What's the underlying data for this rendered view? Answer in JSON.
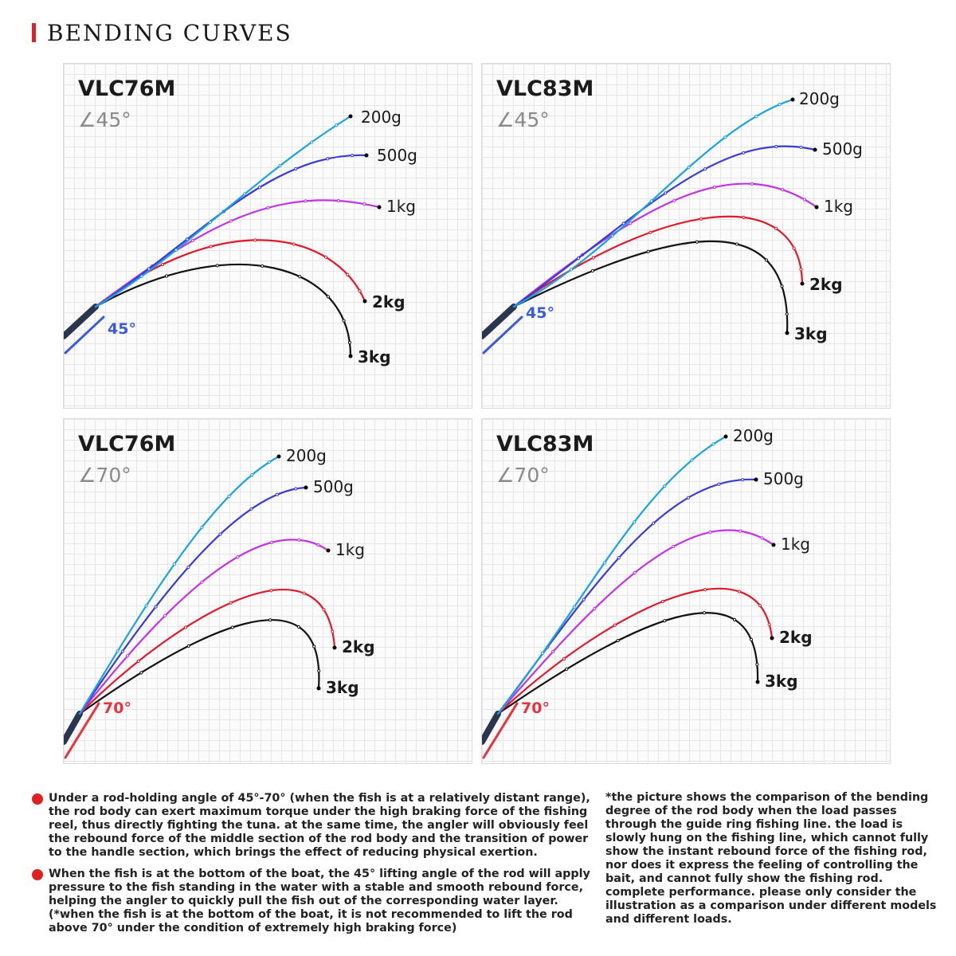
{
  "header": {
    "title": "BENDING CURVES"
  },
  "colors": {
    "accent": "#d9232a",
    "load_200g": "#1aa3e0",
    "load_500g": "#3a3ad6",
    "load_1kg": "#c233e8",
    "load_2kg": "#e0182a",
    "load_3kg": "#111111",
    "angle_45": "#3b5bdb",
    "angle_70": "#e8323c"
  },
  "panels": [
    {
      "model": "VLC76M",
      "angle": "∠45°",
      "angle_marker": "45°",
      "loads": [
        {
          "label": "200g"
        },
        {
          "label": "500g"
        },
        {
          "label": "1kg"
        },
        {
          "label": "2kg"
        },
        {
          "label": "3kg"
        }
      ]
    },
    {
      "model": "VLC83M",
      "angle": "∠45°",
      "angle_marker": "45°",
      "loads": [
        {
          "label": "200g"
        },
        {
          "label": "500g"
        },
        {
          "label": "1kg"
        },
        {
          "label": "2kg"
        },
        {
          "label": "3kg"
        }
      ]
    },
    {
      "model": "VLC76M",
      "angle": "∠70°",
      "angle_marker": "70°",
      "loads": [
        {
          "label": "200g"
        },
        {
          "label": "500g"
        },
        {
          "label": "1kg"
        },
        {
          "label": "2kg"
        },
        {
          "label": "3kg"
        }
      ]
    },
    {
      "model": "VLC83M",
      "angle": "∠70°",
      "angle_marker": "70°",
      "loads": [
        {
          "label": "200g"
        },
        {
          "label": "500g"
        },
        {
          "label": "1kg"
        },
        {
          "label": "2kg"
        },
        {
          "label": "3kg"
        }
      ]
    }
  ],
  "notes": {
    "note1": "Under a rod-holding angle of 45°-70° (when the fish is at a relatively distant range), the rod body can exert maximum torque under the high braking force of the fishing reel, thus directly fighting the tuna. at the same time, the angler will obviously feel the rebound force of the middle section of the rod body and the transition of power to the handle section, which brings the effect of reducing physical exertion.",
    "note2": "When the fish is at the bottom of the boat, the 45° lifting angle of the rod will apply pressure to the fish standing in the water with a stable and smooth rebound force, helping the angler to quickly pull the fish out of the corresponding water layer. (*when the fish is at the bottom of the boat, it is not recommended to lift the rod above 70° under the condition of extremely high braking force)",
    "note3": "*the picture shows the comparison of the bending degree of the rod body when the load passes through the guide ring fishing line. the load is slowly hung on the fishing line, which cannot fully show the instant rebound force of the fishing rod, nor does it express the feeling of controlling the bait, and cannot fully show the fishing rod. complete performance. please only consider the illustration as a comparison under different models and different loads."
  }
}
